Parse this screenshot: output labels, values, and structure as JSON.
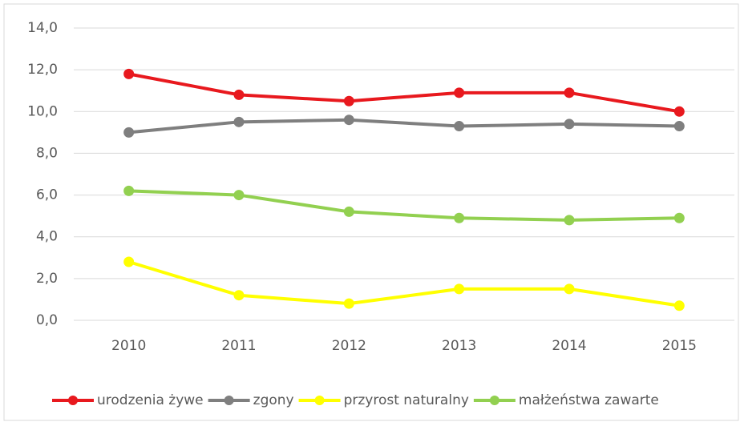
{
  "chart_data": {
    "type": "line",
    "categories": [
      "2010",
      "2011",
      "2012",
      "2013",
      "2014",
      "2015"
    ],
    "series": [
      {
        "name": "urodzenia żywe",
        "color": "#e8191e",
        "values": [
          11.8,
          10.8,
          10.5,
          10.9,
          10.9,
          10.0
        ]
      },
      {
        "name": "zgony",
        "color": "#7f7f7f",
        "values": [
          9.0,
          9.5,
          9.6,
          9.3,
          9.4,
          9.3
        ]
      },
      {
        "name": "przyrost naturalny",
        "color": "#ffff00",
        "values": [
          2.8,
          1.2,
          0.8,
          1.5,
          1.5,
          0.7
        ]
      },
      {
        "name": "małżeństwa zawarte",
        "color": "#92d050",
        "values": [
          6.2,
          6.0,
          5.2,
          4.9,
          4.8,
          4.9
        ]
      }
    ],
    "ylim": [
      0,
      14
    ],
    "yticks": [
      {
        "value": 0,
        "label": "0,0"
      },
      {
        "value": 2,
        "label": "2,0"
      },
      {
        "value": 4,
        "label": "4,0"
      },
      {
        "value": 6,
        "label": "6,0"
      },
      {
        "value": 8,
        "label": "8,0"
      },
      {
        "value": 10,
        "label": "10,0"
      },
      {
        "value": 12,
        "label": "12,0"
      },
      {
        "value": 14,
        "label": "14,0"
      }
    ],
    "grid": true,
    "legend": "bottom"
  }
}
